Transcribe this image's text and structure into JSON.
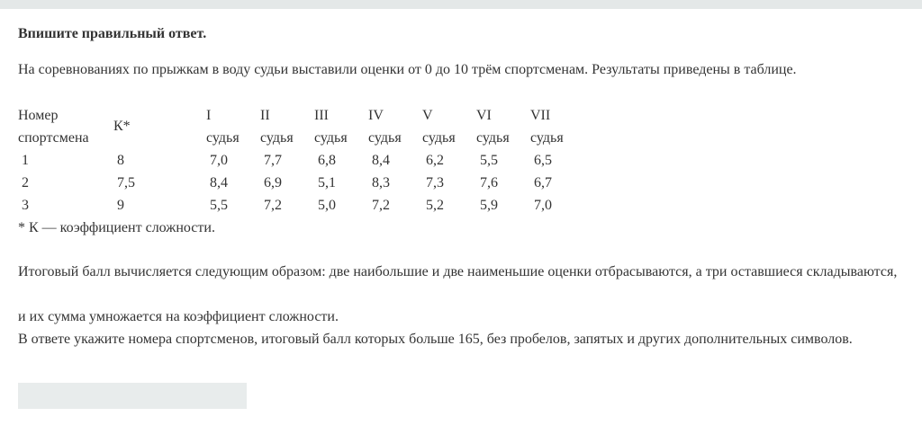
{
  "title": "Впишите правильный ответ.",
  "intro": "На соревнованиях по прыжкам в воду судьи выставили оценки от 0 до 10 трём спортсменам. Результаты приведены в таблице.",
  "table": {
    "header_athlete": [
      "Номер",
      "спортсмена"
    ],
    "header_k": "К*",
    "judges": [
      [
        "I",
        "судья"
      ],
      [
        "II",
        "судья"
      ],
      [
        "III",
        "судья"
      ],
      [
        "IV",
        "судья"
      ],
      [
        "V",
        "судья"
      ],
      [
        "VI",
        "судья"
      ],
      [
        "VII",
        "судья"
      ]
    ],
    "rows": [
      {
        "num": "1",
        "k": "8",
        "scores": [
          "7,0",
          "7,7",
          "6,8",
          "8,4",
          "6,2",
          "5,5",
          "6,5"
        ]
      },
      {
        "num": "2",
        "k": "7,5",
        "scores": [
          "8,4",
          "6,9",
          "5,1",
          "8,3",
          "7,3",
          "7,6",
          "6,7"
        ]
      },
      {
        "num": "3",
        "k": "9",
        "scores": [
          "5,5",
          "7,2",
          "5,0",
          "7,2",
          "5,2",
          "5,9",
          "7,0"
        ]
      }
    ],
    "footnote": "* К —  коэффициент сложности."
  },
  "paragraphs": [
    "Итоговый балл вычисляется следующим образом: две наибольшие и две наименьшие оценки отбрасываются, а три оставшиеся складываются,",
    "и их сумма умножается на коэффициент сложности.",
    "В ответе укажите номера спортсменов, итоговый балл которых больше 165, без пробелов, запятых и других дополнительных символов."
  ],
  "answer": {
    "value": ""
  }
}
